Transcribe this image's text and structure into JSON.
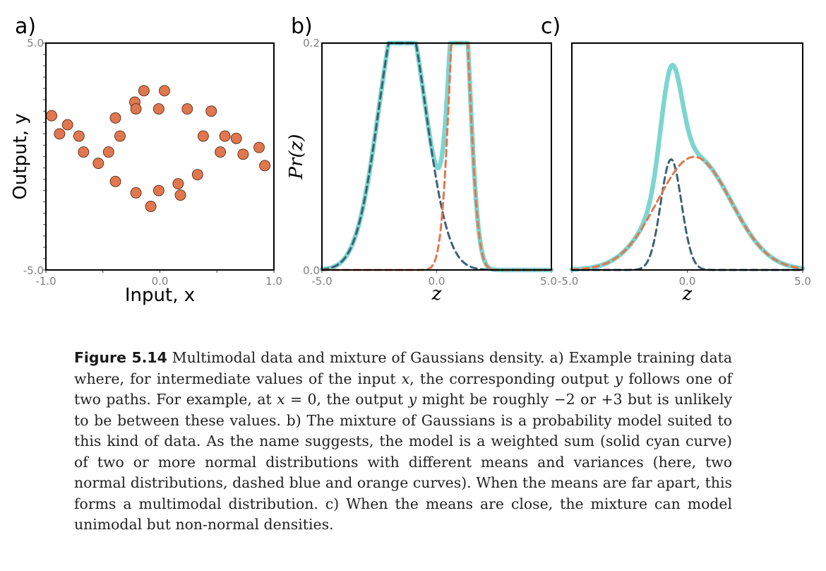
{
  "chart_data": [
    {
      "type": "scatter",
      "panel_label": "a)",
      "xlabel": "Input, x",
      "ylabel": "Output, y",
      "xlim": [
        -1.0,
        1.0
      ],
      "ylim": [
        -5.0,
        5.0
      ],
      "x_ticks": [
        "-1.0",
        "0.0",
        "1.0"
      ],
      "y_ticks": [
        "5.0",
        "-5.0"
      ],
      "grid": false,
      "marker_color": "#e0774e",
      "points": [
        {
          "x": -0.95,
          "y": 1.8
        },
        {
          "x": -0.88,
          "y": 1.0
        },
        {
          "x": -0.81,
          "y": 1.4
        },
        {
          "x": -0.71,
          "y": 0.9
        },
        {
          "x": -0.67,
          "y": 0.2
        },
        {
          "x": -0.54,
          "y": -0.3
        },
        {
          "x": -0.45,
          "y": 0.2
        },
        {
          "x": -0.39,
          "y": 1.7
        },
        {
          "x": -0.35,
          "y": 0.9
        },
        {
          "x": -0.39,
          "y": -1.1
        },
        {
          "x": -0.22,
          "y": 2.4
        },
        {
          "x": -0.21,
          "y": 2.1
        },
        {
          "x": -0.21,
          "y": -1.6
        },
        {
          "x": -0.14,
          "y": 2.9
        },
        {
          "x": -0.08,
          "y": -2.2
        },
        {
          "x": -0.01,
          "y": 2.1
        },
        {
          "x": -0.01,
          "y": -1.5
        },
        {
          "x": 0.04,
          "y": 2.9
        },
        {
          "x": 0.16,
          "y": -1.2
        },
        {
          "x": 0.18,
          "y": -1.7
        },
        {
          "x": 0.24,
          "y": 2.1
        },
        {
          "x": 0.33,
          "y": -0.8
        },
        {
          "x": 0.38,
          "y": 0.9
        },
        {
          "x": 0.45,
          "y": 2.0
        },
        {
          "x": 0.53,
          "y": 0.2
        },
        {
          "x": 0.57,
          "y": 0.9
        },
        {
          "x": 0.67,
          "y": 0.8
        },
        {
          "x": 0.73,
          "y": 0.1
        },
        {
          "x": 0.87,
          "y": 0.4
        },
        {
          "x": 0.92,
          "y": -0.4
        }
      ]
    },
    {
      "type": "line",
      "panel_label": "b)",
      "xlabel": "z",
      "ylabel": "Pr(z)",
      "xlim": [
        -5.0,
        5.0
      ],
      "ylim": [
        0.0,
        0.2
      ],
      "x_ticks": [
        "-5.0",
        "0.0",
        "5.0"
      ],
      "y_ticks": [
        "0.2",
        "0.0"
      ],
      "grid": false,
      "components": [
        {
          "style": "dashed",
          "color": "#3d6275",
          "mean": -1.5,
          "sd": 1.0,
          "weight": 0.6
        },
        {
          "style": "dashed",
          "color": "#e0774e",
          "mean": 1.0,
          "sd": 0.4,
          "weight": 0.3
        }
      ],
      "mixture": {
        "style": "solid",
        "color": "#7dd5d0"
      }
    },
    {
      "type": "line",
      "panel_label": "c)",
      "xlabel": "z",
      "ylabel": "",
      "xlim": [
        -5.0,
        5.0
      ],
      "ylim": [
        0.0,
        0.2
      ],
      "x_ticks": [
        "-5.0",
        "0.0",
        "5.0"
      ],
      "y_ticks": [],
      "grid": false,
      "components": [
        {
          "style": "dashed",
          "color": "#3d6275",
          "mean": -0.7,
          "sd": 0.45,
          "weight": 0.11
        },
        {
          "style": "dashed",
          "color": "#e0774e",
          "mean": 0.3,
          "sd": 1.6,
          "weight": 0.4
        }
      ],
      "mixture": {
        "style": "solid",
        "color": "#7dd5d0"
      }
    }
  ],
  "caption": {
    "label": "Figure 5.14",
    "text_1": " Multimodal data and mixture of Gaussians density. a) Example training data where, for intermediate values of the input ",
    "math_x1": "x",
    "text_2": ", the corresponding output ",
    "math_y1": "y",
    "text_3": " follows one of two paths. For example, at ",
    "math_x2": "x",
    "text_4": " = 0, the output ",
    "math_y2": "y",
    "text_5": " might be roughly −2 or +3 but is unlikely to be between these values. b) The mixture of Gaussians is a probability model suited to this kind of data. As the name suggests, the model is a weighted sum (solid cyan curve) of two or more normal distributions with different means and variances (here, two normal distributions, dashed blue and orange curves). When the means are far apart, this forms a multimodal distribution. c) When the means are close, the mixture can model unimodal but non-normal densities."
  }
}
